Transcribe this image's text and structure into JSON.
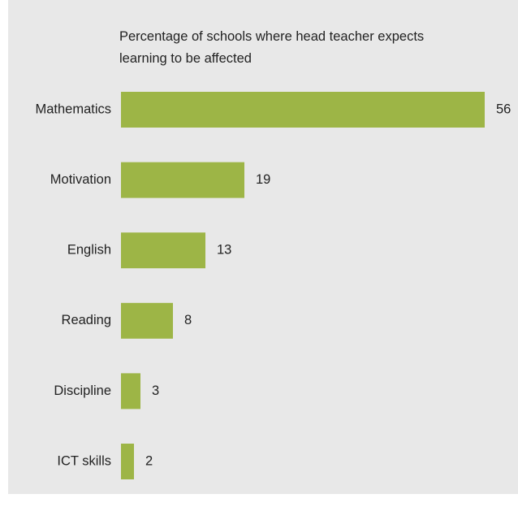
{
  "chart_data": {
    "type": "hbar",
    "title": "Percentage of schools where head teacher expects learning to be affected",
    "categories": [
      "Mathematics",
      "Motivation",
      "English",
      "Reading",
      "Discipline",
      "ICT skills"
    ],
    "values": [
      56,
      19,
      13,
      8,
      3,
      2
    ],
    "color": "#9db546",
    "xlim": [
      0,
      56
    ]
  }
}
